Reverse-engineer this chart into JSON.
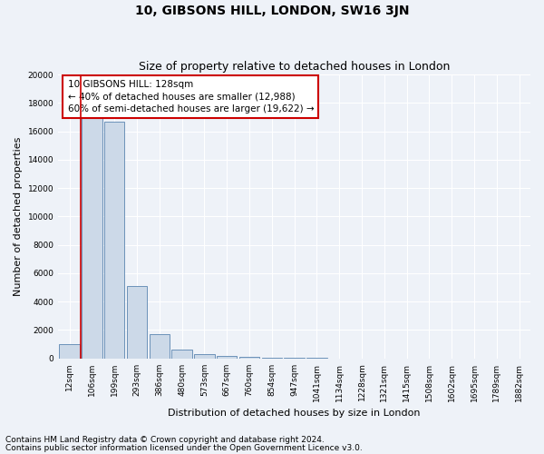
{
  "title": "10, GIBSONS HILL, LONDON, SW16 3JN",
  "subtitle": "Size of property relative to detached houses in London",
  "xlabel": "Distribution of detached houses by size in London",
  "ylabel": "Number of detached properties",
  "footnote1": "Contains HM Land Registry data © Crown copyright and database right 2024.",
  "footnote2": "Contains public sector information licensed under the Open Government Licence v3.0.",
  "bar_labels": [
    "12sqm",
    "106sqm",
    "199sqm",
    "293sqm",
    "386sqm",
    "480sqm",
    "573sqm",
    "667sqm",
    "760sqm",
    "854sqm",
    "947sqm",
    "1041sqm",
    "1134sqm",
    "1228sqm",
    "1321sqm",
    "1415sqm",
    "1508sqm",
    "1602sqm",
    "1695sqm",
    "1789sqm",
    "1882sqm"
  ],
  "bar_values": [
    1000,
    17200,
    16700,
    5100,
    1700,
    600,
    280,
    160,
    100,
    70,
    25,
    12,
    8,
    4,
    4,
    2,
    2,
    1,
    1,
    1,
    1
  ],
  "bar_color": "#ccd9e8",
  "bar_edge_color": "#5a85b0",
  "vline_x": 0.5,
  "vline_color": "#cc0000",
  "annotation_line1": "10 GIBSONS HILL: 128sqm",
  "annotation_line2": "← 40% of detached houses are smaller (12,988)",
  "annotation_line3": "60% of semi-detached houses are larger (19,622) →",
  "annotation_box_color": "#ffffff",
  "annotation_border_color": "#cc0000",
  "ylim": [
    0,
    20000
  ],
  "yticks": [
    0,
    2000,
    4000,
    6000,
    8000,
    10000,
    12000,
    14000,
    16000,
    18000,
    20000
  ],
  "background_color": "#eef2f8",
  "grid_color": "#ffffff",
  "title_fontsize": 10,
  "subtitle_fontsize": 9,
  "axis_label_fontsize": 8,
  "tick_fontsize": 6.5,
  "annotation_fontsize": 7.5,
  "footnote_fontsize": 6.5
}
